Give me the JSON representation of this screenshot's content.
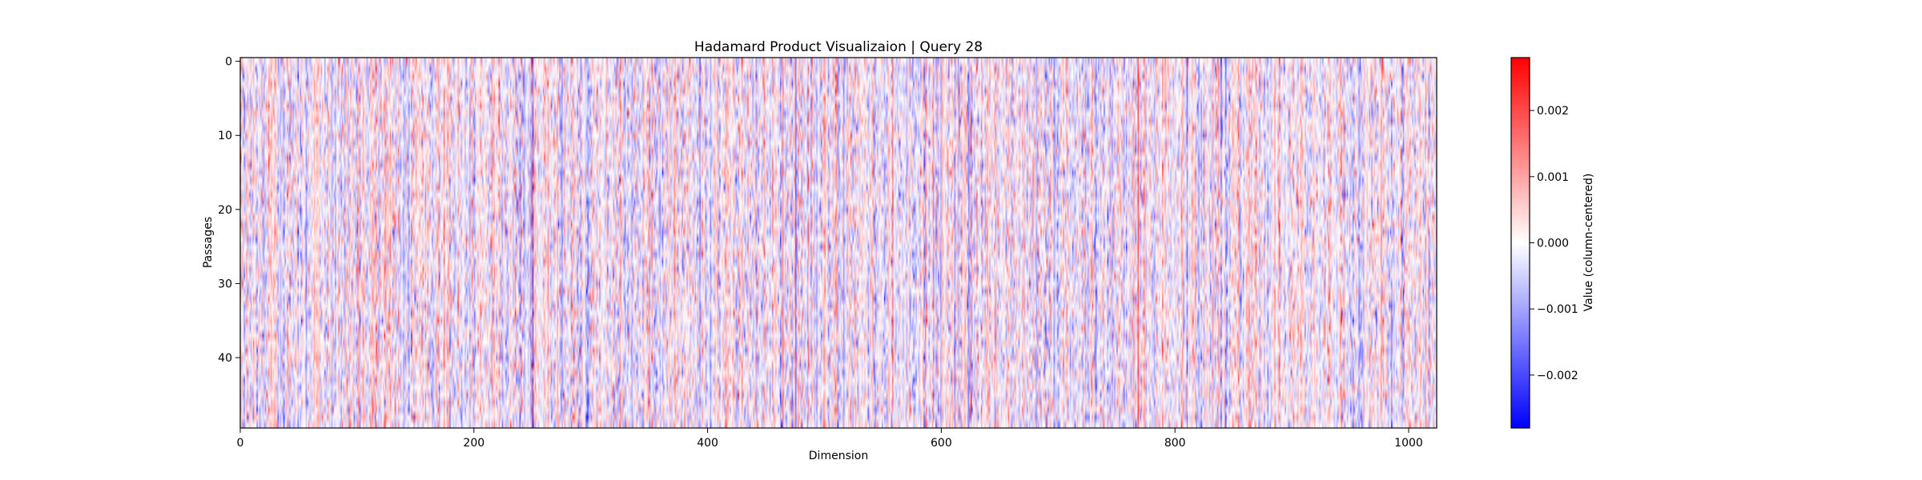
{
  "chart_data": {
    "type": "heatmap",
    "title": "Hadamard Product Visualizaion | Query 28",
    "xlabel": "Dimension",
    "ylabel": "Passages",
    "colorbar_label": "Value (column-centered)",
    "colormap": "bwr",
    "colors": {
      "low": "#0000ff",
      "mid": "#ffffff",
      "high": "#ff0000"
    },
    "n_rows": 50,
    "n_cols": 1024,
    "xlim": [
      0,
      1024
    ],
    "ylim": [
      50,
      0
    ],
    "vlim": [
      -0.0028,
      0.0028
    ],
    "xticks": [
      0,
      200,
      400,
      600,
      800,
      1000
    ],
    "yticks": [
      0,
      10,
      20,
      30,
      40
    ],
    "colorbar_ticks": [
      0.002,
      0.001,
      0.0,
      -0.001,
      -0.002
    ],
    "xtick_labels": [
      "0",
      "200",
      "400",
      "600",
      "800",
      "1000"
    ],
    "ytick_labels": [
      "0",
      "10",
      "20",
      "30",
      "40"
    ],
    "colorbar_tick_labels": [
      "0.002",
      "0.001",
      "0.000",
      "−0.001",
      "−0.002"
    ],
    "grid": false,
    "note_values": "cell values estimated; column-wise structure with strong vertical stripes"
  }
}
